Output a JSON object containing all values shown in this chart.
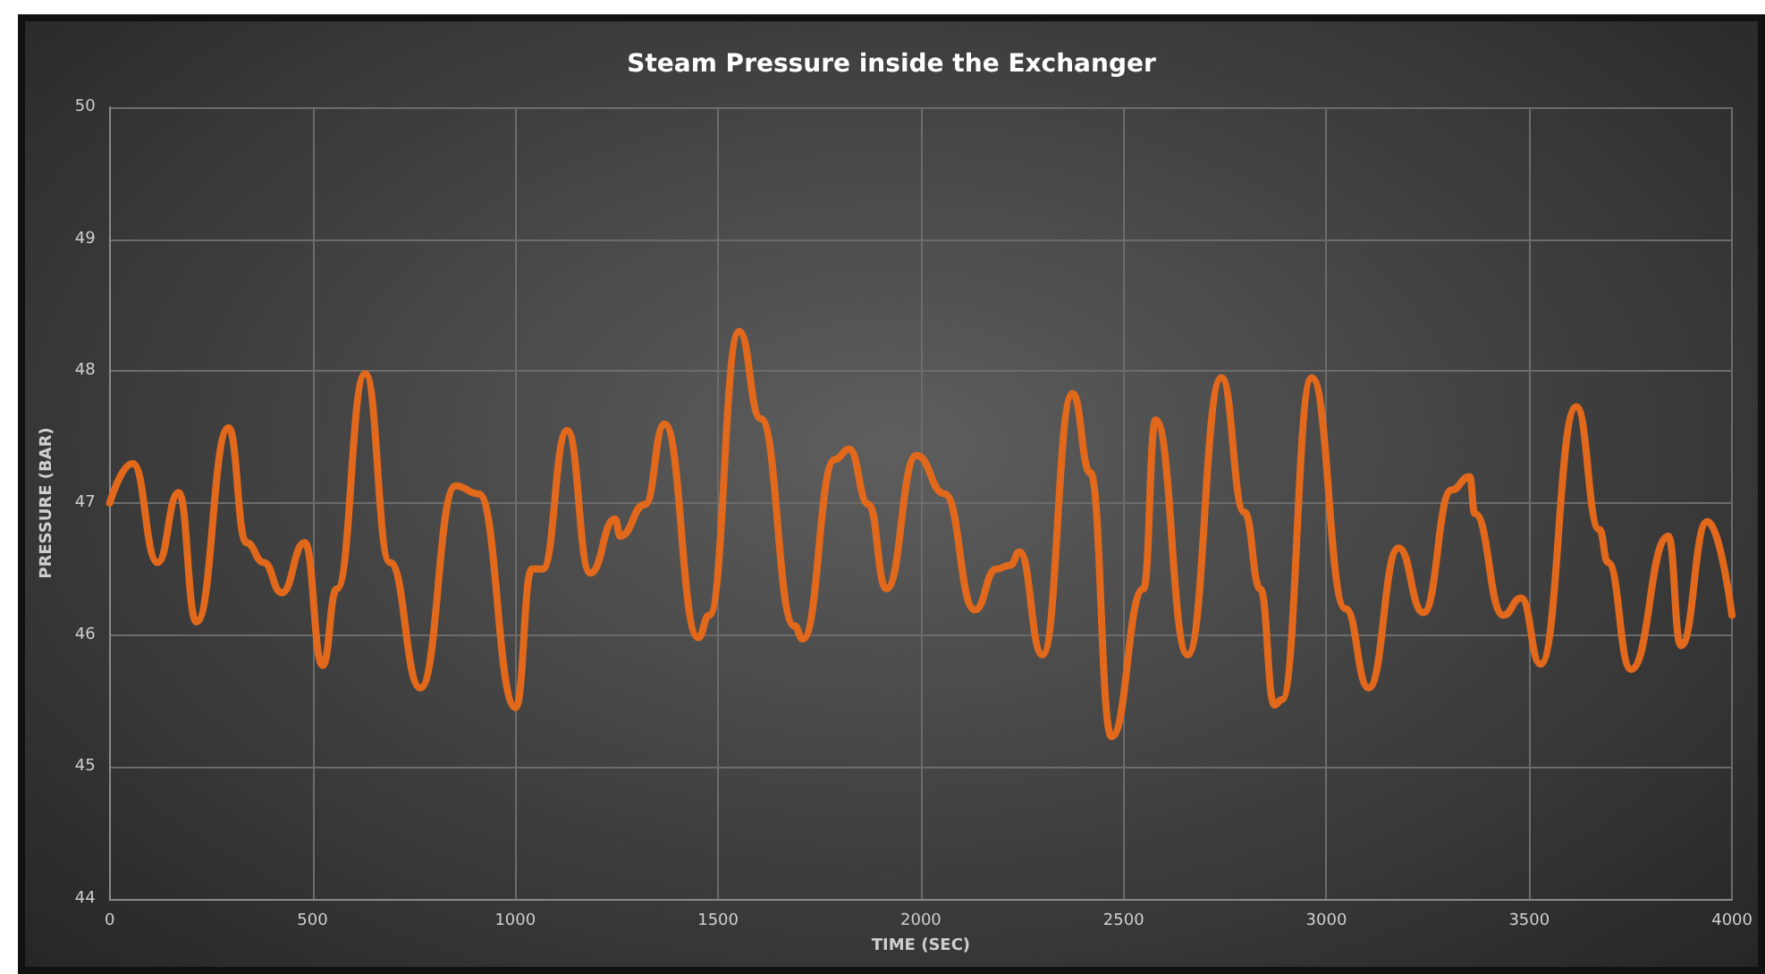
{
  "chart_data": {
    "type": "line",
    "title": "Steam Pressure inside the Exchanger",
    "xlabel": "TIME (SEC)",
    "ylabel": "PRESSURE (BAR)",
    "xlim": [
      0,
      4000
    ],
    "xticks": [
      0,
      500,
      1000,
      1500,
      2000,
      2500,
      3000,
      3500,
      4000
    ],
    "ylim": [
      44,
      50
    ],
    "yticks": [
      44,
      45,
      46,
      47,
      48,
      49,
      50
    ],
    "grid": true,
    "marker": "none",
    "line_style": "solid",
    "series": [
      {
        "color": "#e2691c",
        "x": [
          0,
          57,
          118,
          170,
          214,
          293,
          337,
          380,
          424,
          481,
          525,
          560,
          630,
          691,
          766,
          853,
          910,
          1001,
          1041,
          1067,
          1128,
          1185,
          1246,
          1259,
          1320,
          1368,
          1451,
          1478,
          1552,
          1605,
          1688,
          1709,
          1788,
          1823,
          1871,
          1915,
          1989,
          2059,
          2133,
          2186,
          2221,
          2243,
          2300,
          2374,
          2418,
          2470,
          2549,
          2579,
          2658,
          2741,
          2798,
          2837,
          2872,
          2890,
          2964,
          3047,
          3104,
          3178,
          3239,
          3309,
          3353,
          3366,
          3436,
          3480,
          3528,
          3616,
          3673,
          3694,
          3751,
          3843,
          3874,
          3939,
          4000
        ],
        "values": [
          47.0,
          47.3,
          46.55,
          47.08,
          46.1,
          47.57,
          46.7,
          46.55,
          46.32,
          46.7,
          45.77,
          46.35,
          47.98,
          46.55,
          45.6,
          47.13,
          47.07,
          45.45,
          46.5,
          46.5,
          47.55,
          46.47,
          46.88,
          46.75,
          46.99,
          47.6,
          45.98,
          46.15,
          48.3,
          47.64,
          46.07,
          45.97,
          47.33,
          47.41,
          46.99,
          46.35,
          47.36,
          47.07,
          46.19,
          46.5,
          46.53,
          46.63,
          45.85,
          47.83,
          47.23,
          45.23,
          46.35,
          47.63,
          45.85,
          47.95,
          46.93,
          46.35,
          45.47,
          45.51,
          47.95,
          46.2,
          45.6,
          46.66,
          46.17,
          47.1,
          47.2,
          46.92,
          46.15,
          46.28,
          45.78,
          47.73,
          46.8,
          46.55,
          45.74,
          46.75,
          45.92,
          46.86,
          46.15
        ]
      }
    ]
  }
}
